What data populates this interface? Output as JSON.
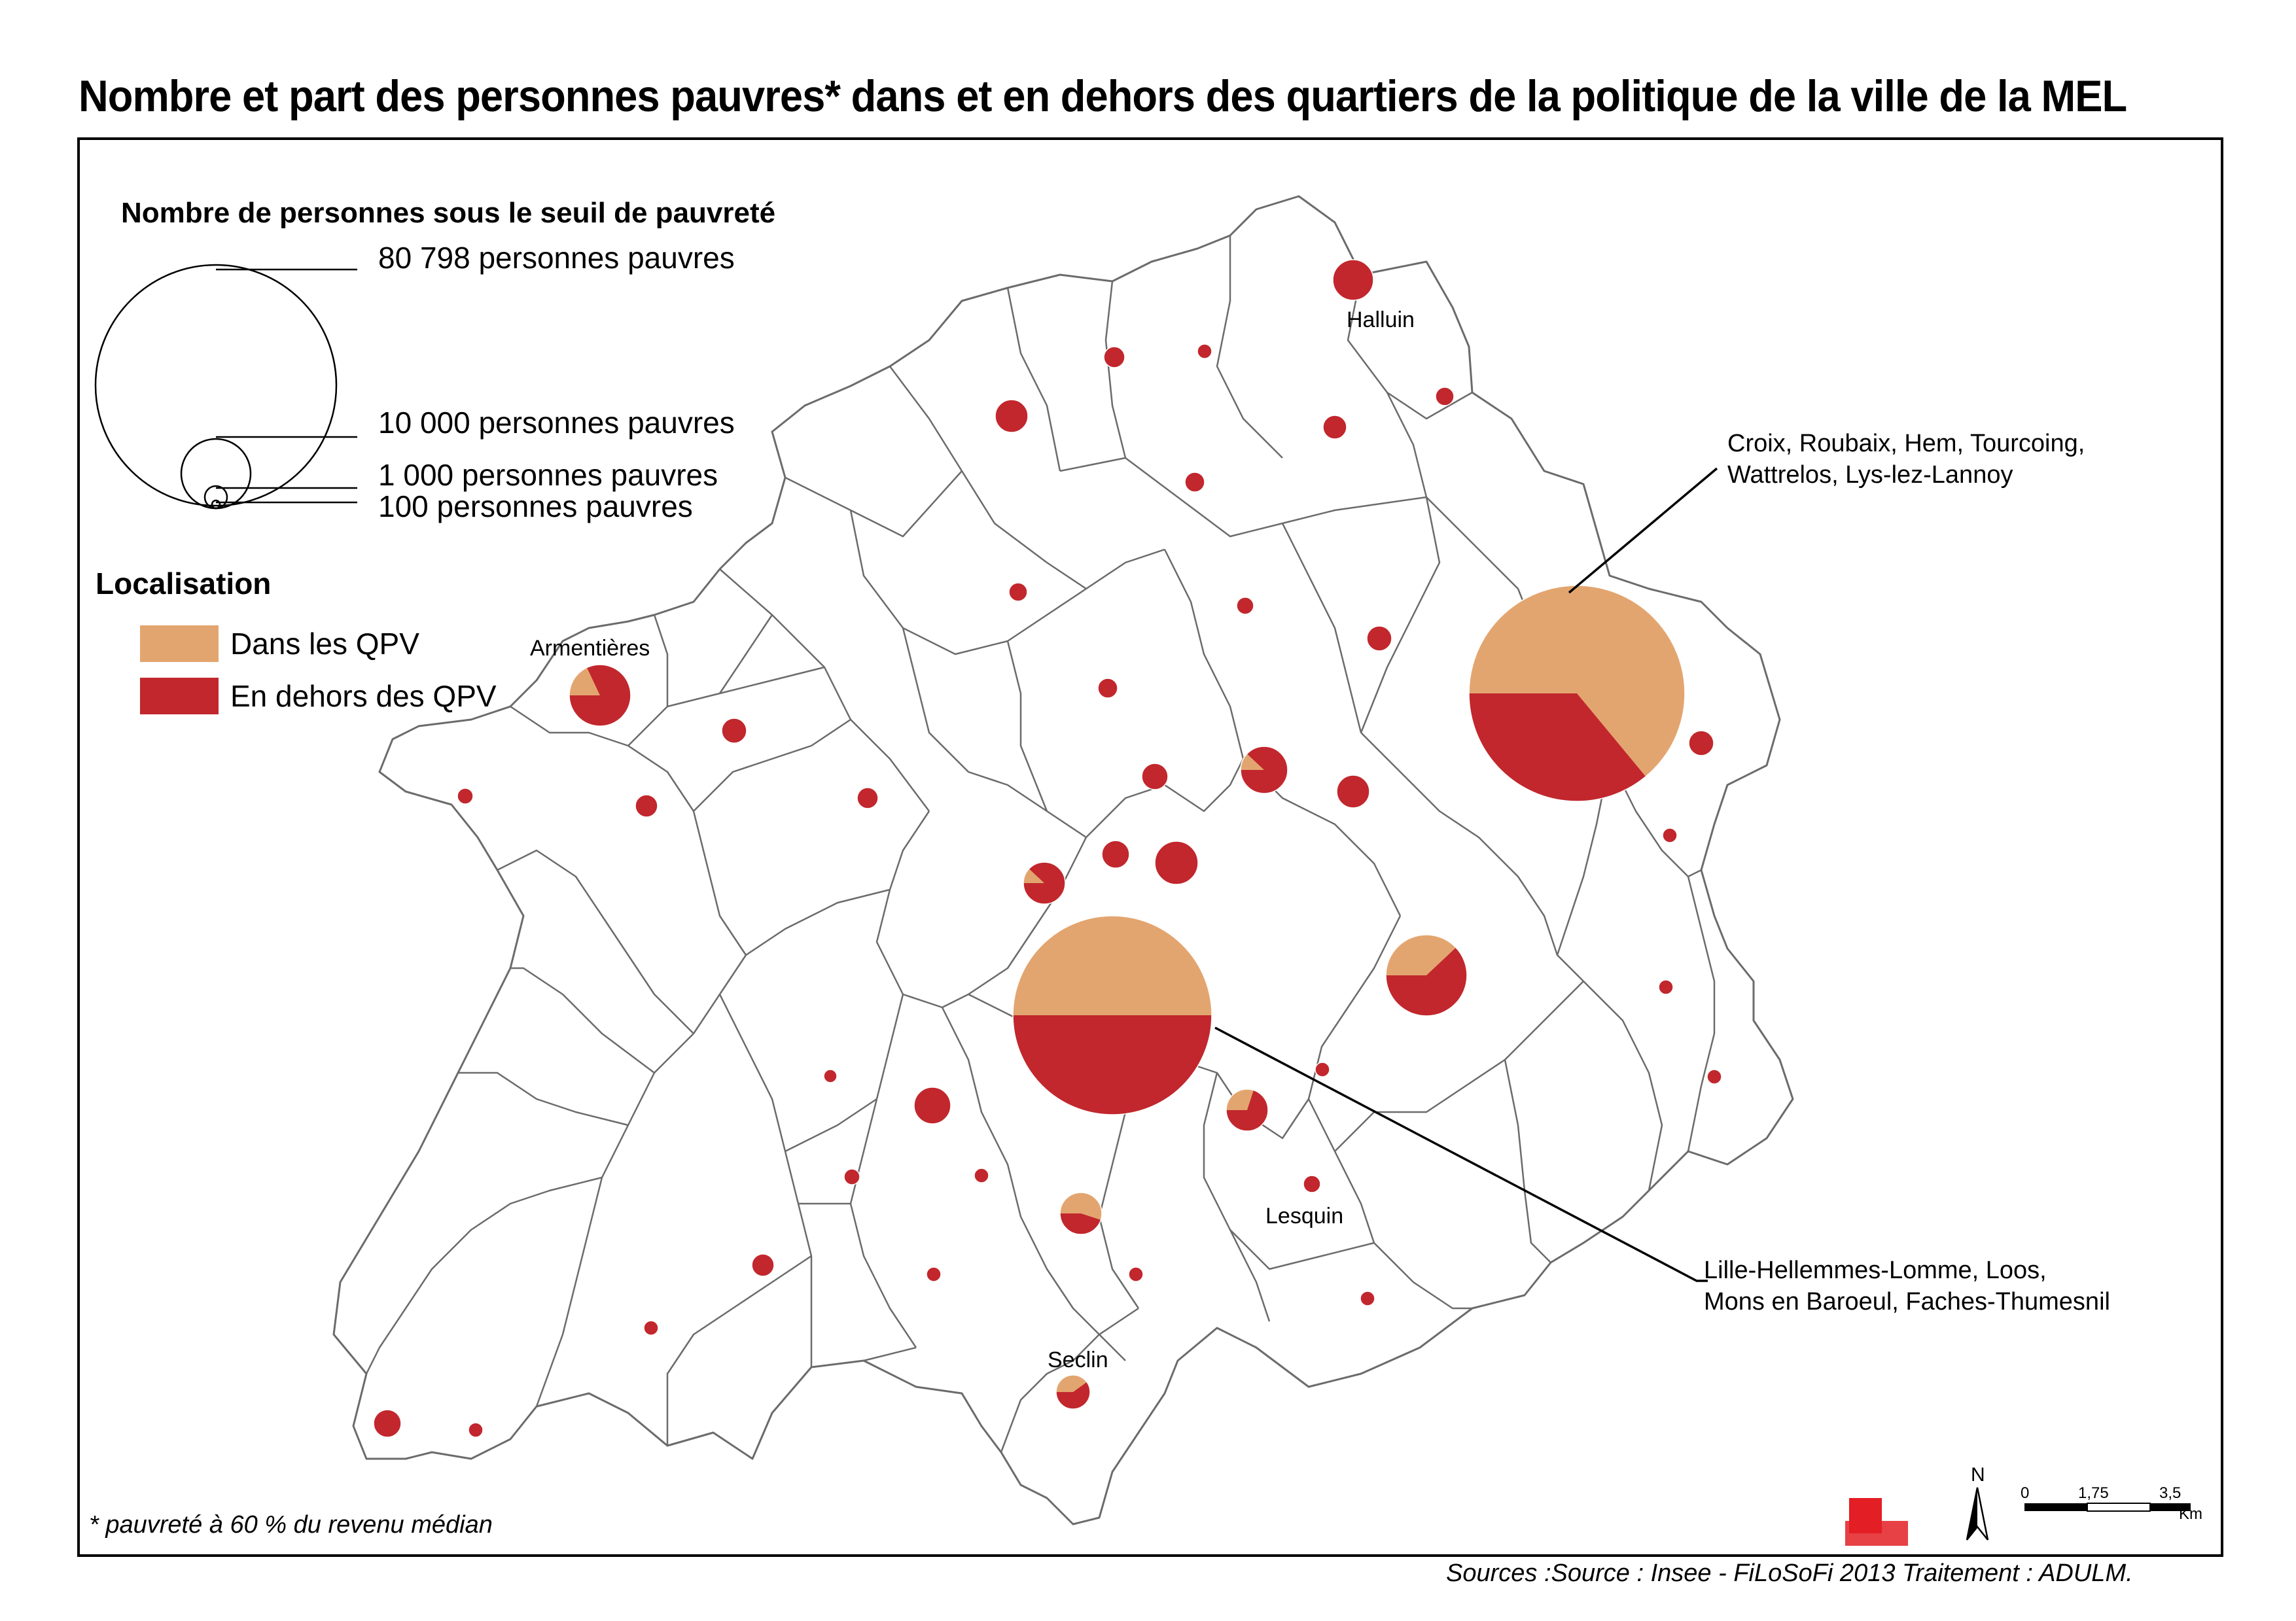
{
  "title": "Nombre et part des personnes pauvres* dans et en dehors des quartiers de la politique de la ville de la MEL",
  "size_legend": {
    "title": "Nombre de personnes sous le seuil de pauvreté",
    "items": [
      {
        "value": 80798,
        "label": "80 798 personnes pauvres"
      },
      {
        "value": 10000,
        "label": "10 000  personnes pauvres"
      },
      {
        "value": 1000,
        "label": "1 000  personnes pauvres"
      },
      {
        "value": 100,
        "label": "100  personnes pauvres"
      }
    ]
  },
  "location_legend": {
    "title": "Localisation",
    "items": [
      {
        "label": "Dans les QPV",
        "color": "#E3A56F"
      },
      {
        "label": "En dehors des QPV",
        "color": "#C1272D"
      }
    ]
  },
  "callouts": {
    "roubaix_line1": "Croix, Roubaix, Hem, Tourcoing,",
    "roubaix_line2": "Wattrelos, Lys-lez-Lannoy",
    "lille_line1": "Lille-Hellemmes-Lomme, Loos,",
    "lille_line2": "Mons en Baroeul, Faches-Thumesnil"
  },
  "place_labels": {
    "halluin": "Halluin",
    "armentieres": "Armentières",
    "lesquin": "Lesquin",
    "seclin": "Seclin"
  },
  "scale_bar": {
    "t0": "0",
    "t1": "1,75",
    "t2": "3,5",
    "unit": "Km"
  },
  "north_label": "N",
  "footnote": "* pauvreté à 60 % du revenu médian",
  "sources": "Sources :Source : Insee - FiLoSoFi 2013     Traitement : ADULM.",
  "colors": {
    "qpv": "#E3A56F",
    "hors_qpv": "#C1272D",
    "boundary": "#6b6b6b",
    "logo_red": "#E31E24"
  }
}
